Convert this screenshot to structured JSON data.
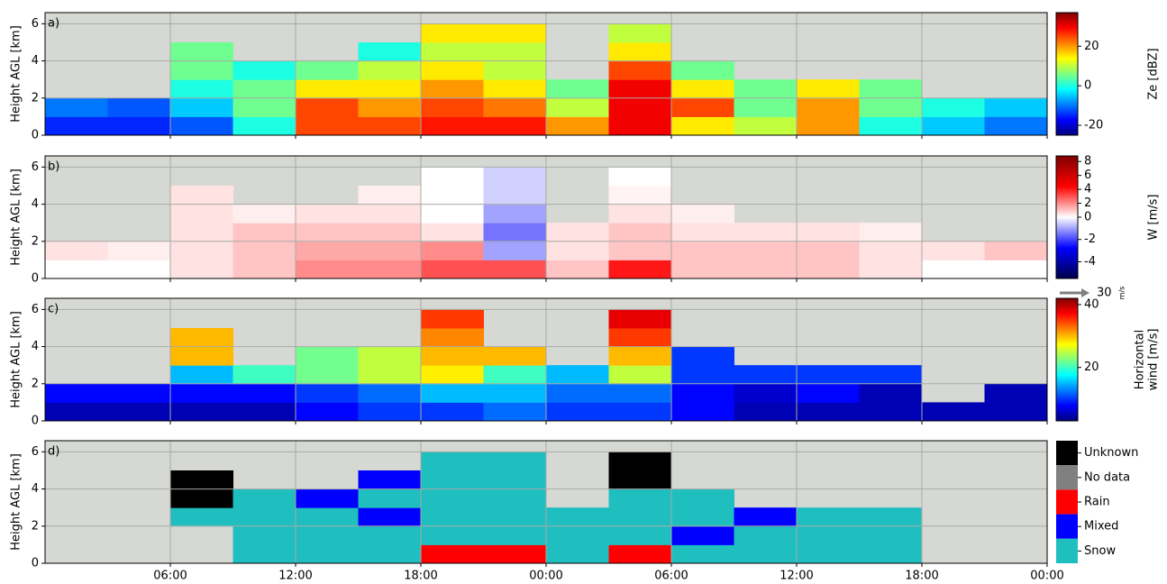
{
  "chart_data": [
    {
      "type": "heatmap",
      "panel_label": "a)",
      "ylabel": "Height AGL [km]",
      "cmap": "jet",
      "clim": [
        -25,
        37
      ],
      "colorbar_label": [
        "Ze [dBZ]"
      ],
      "colorbar_ticks": [
        -20,
        0,
        20
      ],
      "xlim": [
        0,
        48
      ],
      "xticks": [
        6,
        12,
        18,
        24,
        30,
        36,
        42,
        48
      ],
      "ylim": [
        0,
        6.6
      ],
      "yticks": [
        0,
        2,
        4,
        6
      ],
      "grid": true,
      "x_edges": [
        0,
        3,
        6,
        9,
        12,
        15,
        18,
        21,
        24,
        27,
        30,
        33,
        36,
        39,
        42,
        45,
        48
      ],
      "y_edges": [
        0,
        1,
        2,
        3,
        4,
        5,
        6
      ],
      "z": [
        [
          -15,
          -15,
          -12,
          0,
          25,
          25,
          28,
          28,
          20,
          30,
          15,
          10,
          20,
          0,
          -5,
          -10
        ],
        [
          -10,
          -12,
          -5,
          5,
          25,
          20,
          25,
          22,
          10,
          30,
          25,
          5,
          20,
          5,
          0,
          -5
        ],
        [
          null,
          null,
          0,
          5,
          15,
          15,
          20,
          15,
          5,
          30,
          15,
          5,
          15,
          5,
          null,
          null
        ],
        [
          null,
          null,
          5,
          0,
          5,
          10,
          15,
          10,
          null,
          25,
          5,
          null,
          null,
          null,
          null,
          null
        ],
        [
          null,
          null,
          5,
          null,
          null,
          0,
          10,
          10,
          null,
          15,
          null,
          null,
          null,
          null,
          null,
          null
        ],
        [
          null,
          null,
          null,
          null,
          null,
          null,
          15,
          15,
          null,
          10,
          null,
          null,
          null,
          null,
          null,
          null
        ]
      ]
    },
    {
      "type": "heatmap",
      "panel_label": "b)",
      "ylabel": "Height AGL [km]",
      "cmap": "seismic",
      "clim": [
        -5.5,
        8.8
      ],
      "norm_center": 0,
      "colorbar_label": [
        "W [m/s]"
      ],
      "colorbar_ticks": [
        -4,
        -2,
        0,
        2,
        4,
        6,
        8
      ],
      "xlim": [
        0,
        48
      ],
      "xticks": [
        6,
        12,
        18,
        24,
        30,
        36,
        42,
        48
      ],
      "ylim": [
        0,
        6.6
      ],
      "yticks": [
        0,
        2,
        4,
        6
      ],
      "grid": true,
      "x_edges": [
        0,
        3,
        6,
        9,
        12,
        15,
        18,
        21,
        24,
        27,
        30,
        33,
        36,
        39,
        42,
        45,
        48
      ],
      "y_edges": [
        0,
        1,
        2,
        3,
        4,
        5,
        6
      ],
      "z": [
        [
          0,
          0,
          0.5,
          1,
          2,
          2,
          3,
          3,
          1,
          4,
          1,
          1,
          1,
          0.5,
          0,
          0
        ],
        [
          0.5,
          0.3,
          0.5,
          1,
          1.5,
          1.5,
          2,
          -1,
          0.5,
          1,
          1,
          1,
          1,
          0.5,
          0.5,
          1
        ],
        [
          null,
          null,
          0.5,
          1,
          1,
          1,
          0.5,
          -1.5,
          0.5,
          1,
          0.5,
          0.5,
          0.5,
          0.3,
          null,
          null
        ],
        [
          null,
          null,
          0.5,
          0.3,
          0.5,
          0.5,
          0,
          -1,
          null,
          0.5,
          0.3,
          null,
          null,
          null,
          null,
          null
        ],
        [
          null,
          null,
          0.5,
          null,
          null,
          0.3,
          0,
          -0.5,
          null,
          0.2,
          null,
          null,
          null,
          null,
          null,
          null
        ],
        [
          null,
          null,
          null,
          null,
          null,
          null,
          0,
          -0.5,
          null,
          0,
          null,
          null,
          null,
          null,
          null,
          null
        ]
      ]
    },
    {
      "type": "heatmap",
      "panel_label": "c)",
      "ylabel": "Height AGL [km]",
      "cmap": "jet",
      "clim": [
        3,
        42
      ],
      "colorbar_label": [
        "Horizontal",
        "wind [m/s]"
      ],
      "colorbar_ticks": [
        20,
        40
      ],
      "reference_arrow": 30,
      "reference_unit": "m/s",
      "xlim": [
        0,
        48
      ],
      "xticks": [
        6,
        12,
        18,
        24,
        30,
        36,
        42,
        48
      ],
      "ylim": [
        0,
        6.6
      ],
      "yticks": [
        0,
        2,
        4,
        6
      ],
      "grid": true,
      "x_edges": [
        0,
        3,
        6,
        9,
        12,
        15,
        18,
        21,
        24,
        27,
        30,
        33,
        36,
        39,
        42,
        45,
        48
      ],
      "y_edges": [
        0,
        1,
        2,
        3,
        4,
        5,
        6
      ],
      "z": [
        [
          5,
          5,
          5,
          5,
          8,
          10,
          10,
          12,
          10,
          10,
          8,
          5,
          5,
          5,
          5,
          5
        ],
        [
          8,
          8,
          8,
          8,
          10,
          12,
          15,
          15,
          12,
          12,
          8,
          6,
          8,
          5,
          null,
          5
        ],
        [
          null,
          null,
          15,
          20,
          22,
          25,
          28,
          20,
          15,
          25,
          10,
          10,
          10,
          10,
          null,
          null
        ],
        [
          null,
          null,
          30,
          null,
          22,
          25,
          30,
          30,
          null,
          30,
          10,
          null,
          null,
          null,
          null,
          null
        ],
        [
          null,
          null,
          30,
          null,
          null,
          null,
          32,
          null,
          null,
          35,
          null,
          null,
          null,
          null,
          null,
          null
        ],
        [
          null,
          null,
          null,
          null,
          null,
          null,
          35,
          null,
          null,
          38,
          null,
          null,
          null,
          null,
          null,
          null
        ]
      ]
    },
    {
      "type": "categorical_heatmap",
      "panel_label": "d)",
      "ylabel": "Height AGL [km]",
      "classes": [
        "Unknown",
        "No data",
        "Rain",
        "Mixed",
        "Snow"
      ],
      "class_colors": [
        "#000000",
        "#808080",
        "#ff0000",
        "#0000ff",
        "#1fbfbf"
      ],
      "xlim": [
        0,
        48
      ],
      "xticks": [
        {
          "value": 6,
          "label": "06:00"
        },
        {
          "value": 12,
          "label": "12:00"
        },
        {
          "value": 18,
          "label": "18:00"
        },
        {
          "value": 24,
          "label": "00:00"
        },
        {
          "value": 30,
          "label": "06:00"
        },
        {
          "value": 36,
          "label": "12:00"
        },
        {
          "value": 42,
          "label": "18:00"
        },
        {
          "value": 48,
          "label": "00:00"
        }
      ],
      "ylim": [
        0,
        6.6
      ],
      "yticks": [
        0,
        2,
        4,
        6
      ],
      "grid": true,
      "x_edges": [
        0,
        3,
        6,
        9,
        12,
        15,
        18,
        21,
        24,
        27,
        30,
        33,
        36,
        39,
        42,
        45,
        48
      ],
      "y_edges": [
        0,
        1,
        2,
        3,
        4,
        5,
        6
      ],
      "z": [
        [
          null,
          null,
          null,
          4,
          4,
          4,
          2,
          2,
          4,
          2,
          4,
          4,
          4,
          4,
          null,
          null
        ],
        [
          null,
          null,
          null,
          4,
          4,
          4,
          4,
          4,
          4,
          4,
          3,
          4,
          4,
          4,
          null,
          null
        ],
        [
          null,
          null,
          4,
          4,
          4,
          3,
          4,
          4,
          4,
          4,
          4,
          3,
          4,
          4,
          null,
          null
        ],
        [
          null,
          null,
          0,
          4,
          3,
          4,
          4,
          4,
          null,
          4,
          4,
          null,
          null,
          null,
          null,
          null
        ],
        [
          null,
          null,
          0,
          null,
          null,
          3,
          4,
          4,
          null,
          0,
          null,
          null,
          null,
          null,
          null,
          null
        ],
        [
          null,
          null,
          null,
          null,
          null,
          null,
          4,
          4,
          null,
          0,
          null,
          null,
          null,
          null,
          null,
          null
        ]
      ]
    }
  ]
}
